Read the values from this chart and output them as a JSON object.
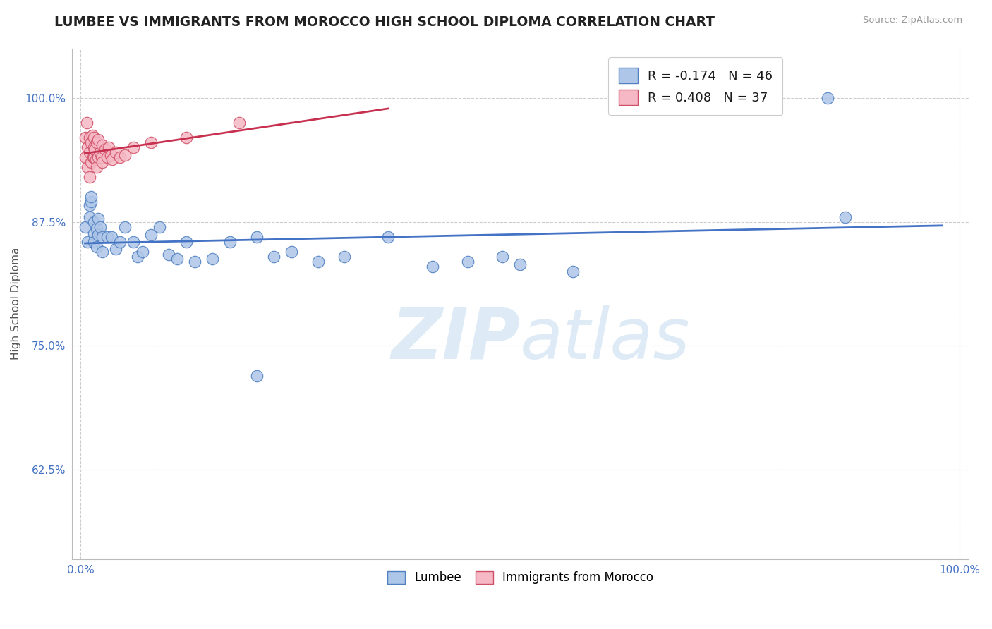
{
  "title": "LUMBEE VS IMMIGRANTS FROM MOROCCO HIGH SCHOOL DIPLOMA CORRELATION CHART",
  "source": "Source: ZipAtlas.com",
  "ylabel": "High School Diploma",
  "xlim": [
    -0.01,
    1.01
  ],
  "ylim": [
    0.535,
    1.05
  ],
  "yticks": [
    0.625,
    0.75,
    0.875,
    1.0
  ],
  "ytick_labels": [
    "62.5%",
    "75.0%",
    "87.5%",
    "100.0%"
  ],
  "xticks": [
    0.0,
    1.0
  ],
  "xtick_labels": [
    "0.0%",
    "100.0%"
  ],
  "legend1_R": "-0.174",
  "legend1_N": "46",
  "legend2_R": "0.408",
  "legend2_N": "37",
  "blue_color": "#aec6e8",
  "pink_color": "#f5b8c4",
  "blue_edge_color": "#5080c0",
  "pink_edge_color": "#d05068",
  "blue_line_color": "#4472c4",
  "pink_line_color": "#c83050",
  "tick_color": "#4472c4",
  "background_color": "#ffffff",
  "watermark_color": "#c8dff0",
  "lumbee_x": [
    0.005,
    0.008,
    0.01,
    0.01,
    0.012,
    0.012,
    0.015,
    0.015,
    0.015,
    0.018,
    0.018,
    0.02,
    0.02,
    0.022,
    0.025,
    0.025,
    0.03,
    0.035,
    0.04,
    0.045,
    0.05,
    0.06,
    0.065,
    0.07,
    0.08,
    0.09,
    0.1,
    0.11,
    0.12,
    0.13,
    0.15,
    0.17,
    0.2,
    0.22,
    0.24,
    0.27,
    0.3,
    0.35,
    0.4,
    0.44,
    0.48,
    0.5,
    0.56,
    0.85,
    0.87,
    0.2
  ],
  "lumbee_y": [
    0.87,
    0.855,
    0.88,
    0.892,
    0.895,
    0.9,
    0.875,
    0.863,
    0.855,
    0.85,
    0.868,
    0.878,
    0.862,
    0.87,
    0.845,
    0.86,
    0.86,
    0.86,
    0.848,
    0.855,
    0.87,
    0.855,
    0.84,
    0.845,
    0.862,
    0.87,
    0.842,
    0.838,
    0.855,
    0.835,
    0.838,
    0.855,
    0.86,
    0.84,
    0.845,
    0.835,
    0.84,
    0.86,
    0.83,
    0.835,
    0.84,
    0.832,
    0.825,
    1.0,
    0.88,
    0.72
  ],
  "morocco_x": [
    0.005,
    0.005,
    0.007,
    0.008,
    0.008,
    0.01,
    0.01,
    0.01,
    0.012,
    0.012,
    0.013,
    0.014,
    0.015,
    0.015,
    0.015,
    0.016,
    0.017,
    0.018,
    0.018,
    0.02,
    0.02,
    0.022,
    0.024,
    0.025,
    0.025,
    0.028,
    0.03,
    0.032,
    0.034,
    0.036,
    0.04,
    0.045,
    0.05,
    0.06,
    0.08,
    0.12,
    0.18
  ],
  "morocco_y": [
    0.96,
    0.94,
    0.975,
    0.95,
    0.93,
    0.96,
    0.945,
    0.92,
    0.955,
    0.935,
    0.962,
    0.94,
    0.95,
    0.96,
    0.94,
    0.948,
    0.938,
    0.955,
    0.93,
    0.94,
    0.958,
    0.945,
    0.94,
    0.935,
    0.952,
    0.948,
    0.94,
    0.95,
    0.942,
    0.938,
    0.945,
    0.94,
    0.942,
    0.95,
    0.955,
    0.96,
    0.975
  ]
}
